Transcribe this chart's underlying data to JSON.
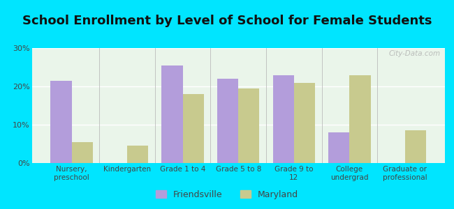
{
  "title": "School Enrollment by Level of School for Female Students",
  "categories": [
    "Nursery,\npreschool",
    "Kindergarten",
    "Grade 1 to 4",
    "Grade 5 to 8",
    "Grade 9 to\n12",
    "College\nundergrad",
    "Graduate or\nprofessional"
  ],
  "friendsville": [
    21.5,
    0,
    25.5,
    22.0,
    23.0,
    8.0,
    0
  ],
  "maryland": [
    5.5,
    4.5,
    18.0,
    19.5,
    21.0,
    23.0,
    8.5
  ],
  "friendsville_color": "#b39ddb",
  "maryland_color": "#c8ca8e",
  "background_outer": "#00e5ff",
  "background_inner": "#eaf5ea",
  "ylim": [
    0,
    30
  ],
  "yticks": [
    0,
    10,
    20,
    30
  ],
  "ytick_labels": [
    "0%",
    "10%",
    "20%",
    "30%"
  ],
  "bar_width": 0.38,
  "title_fontsize": 13,
  "legend_labels": [
    "Friendsville",
    "Maryland"
  ],
  "watermark": "City-Data.com"
}
